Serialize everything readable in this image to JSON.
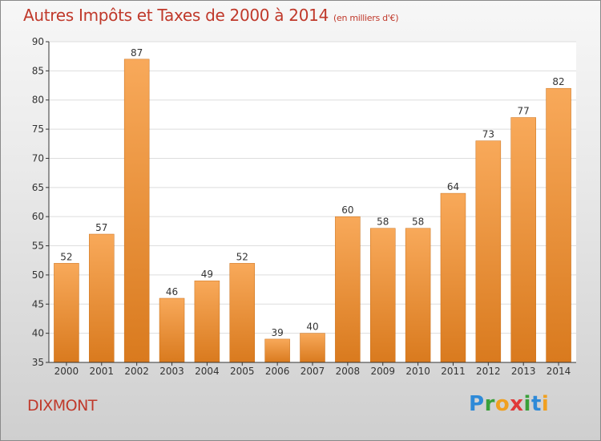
{
  "title": "Autres Impôts et Taxes de 2000 à 2014",
  "unit_note": "(en milliers d'€)",
  "place": "DIXMONT",
  "logo": {
    "text": "Proxiti",
    "letters": [
      "P",
      "r",
      "o",
      "x",
      "i",
      "t",
      "i"
    ]
  },
  "colors": {
    "title": "#c0392b",
    "bar_light": "#f8a95a",
    "bar_dark": "#d97a1e",
    "axis": "#333333",
    "grid": "#dddddd"
  },
  "chart_data": {
    "type": "bar",
    "categories": [
      "2000",
      "2001",
      "2002",
      "2003",
      "2004",
      "2005",
      "2006",
      "2007",
      "2008",
      "2009",
      "2010",
      "2011",
      "2012",
      "2013",
      "2014"
    ],
    "values": [
      52,
      57,
      87,
      46,
      49,
      52,
      39,
      40,
      60,
      58,
      58,
      64,
      73,
      77,
      82
    ],
    "data_labels": [
      "52",
      "57",
      "87",
      "46",
      "49",
      "52",
      "39",
      "40",
      "60",
      "58",
      "58",
      "64",
      "73",
      "77",
      "82"
    ],
    "title": "Autres Impôts et Taxes de 2000 à 2014",
    "xlabel": "",
    "ylabel": "",
    "ylim": [
      35,
      90
    ],
    "yticks": [
      35,
      40,
      45,
      50,
      55,
      60,
      65,
      70,
      75,
      80,
      85,
      90
    ],
    "grid": true,
    "legend": "none"
  }
}
